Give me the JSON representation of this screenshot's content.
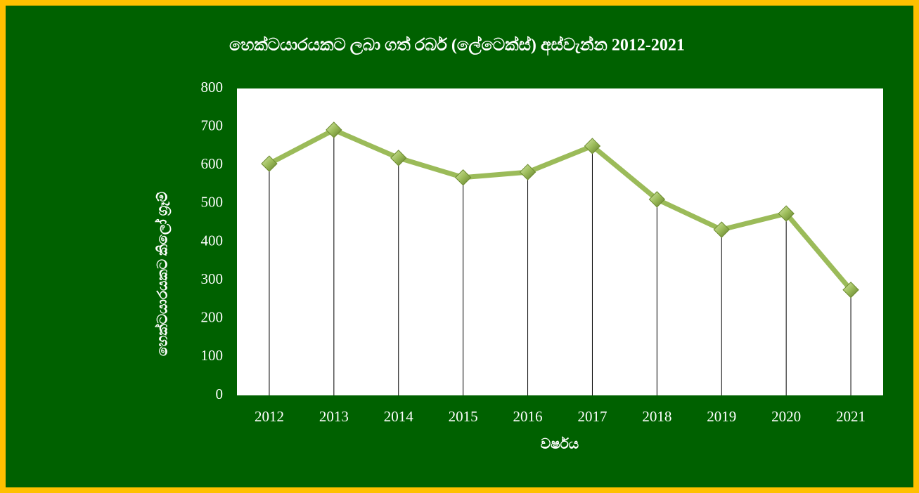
{
  "chart_data": {
    "type": "line",
    "title": "හෙක්ටයාරයකට ලබා ගත් රබර් (ලේටෙක්ස්) අස්වැන්න 2012-2021",
    "x_label": "වර්ෂය",
    "y_label": "හෙක්ටයාරයකට කිලෝ ග්‍රෑම්",
    "categories": [
      "2012",
      "2013",
      "2014",
      "2015",
      "2016",
      "2017",
      "2018",
      "2019",
      "2020",
      "2021"
    ],
    "values": [
      604,
      692,
      619,
      568,
      582,
      650,
      511,
      432,
      474,
      275
    ],
    "color": "#9bbb59",
    "drop_lines": true,
    "ylim": [
      0,
      800
    ],
    "yticks": [
      0,
      100,
      200,
      300,
      400,
      500,
      600,
      700,
      800
    ]
  }
}
